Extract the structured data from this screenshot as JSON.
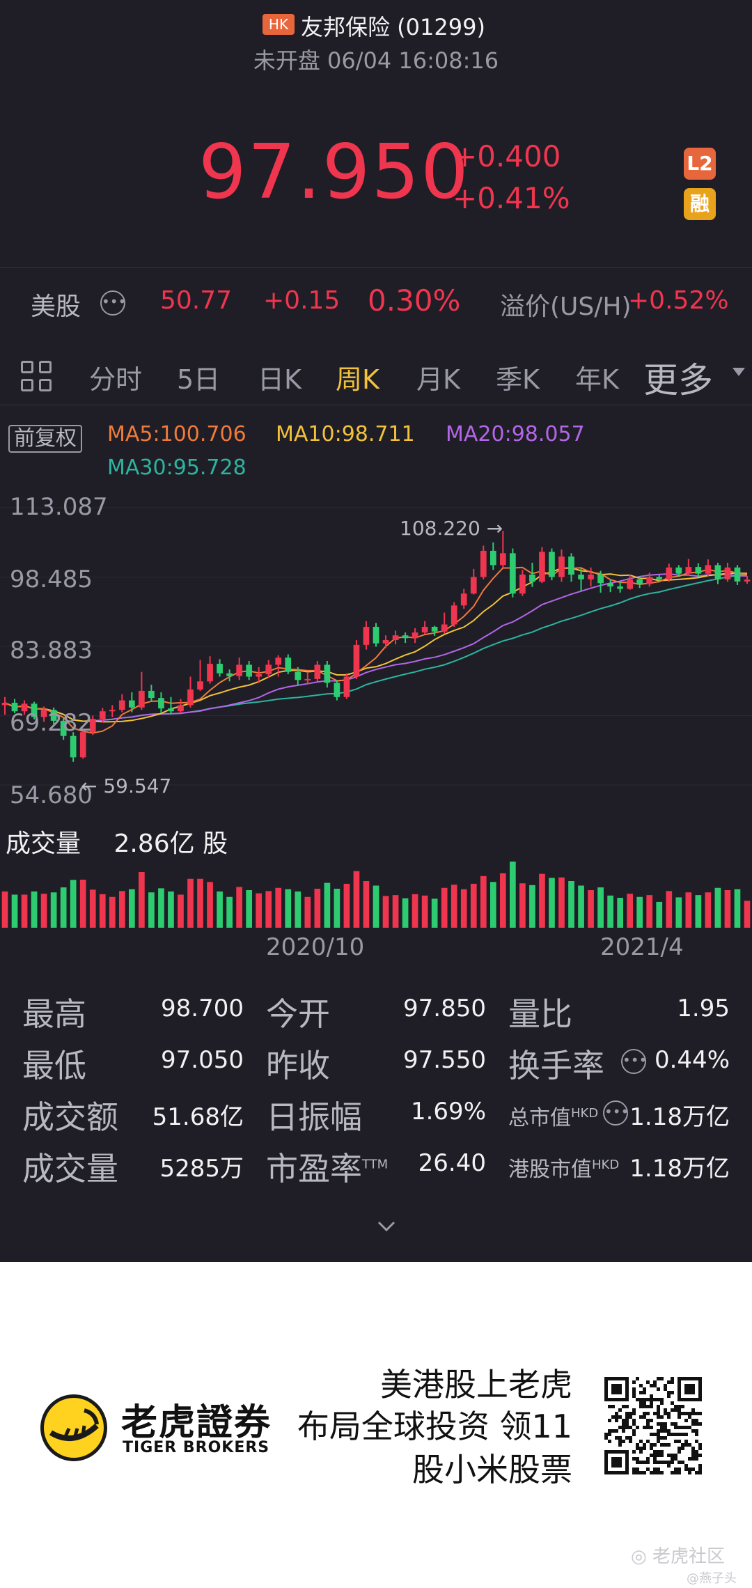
{
  "header": {
    "market_badge": "HK",
    "title": "友邦保险 (01299)",
    "status": "未开盘 06/04 16:08:16",
    "price": "97.950",
    "change": "+0.400",
    "change_pct": "+0.41%",
    "l2_badge": "L2",
    "margin_badge": "融"
  },
  "us_row": {
    "label": "美股",
    "price": "50.77",
    "change": "+0.15",
    "change_pct": "0.30%",
    "premium_label": "溢价(US/H)",
    "premium_value": "+0.52%"
  },
  "tabs": [
    {
      "label": "分时"
    },
    {
      "label": "5日"
    },
    {
      "label": "日K"
    },
    {
      "label": "周K",
      "active": true
    },
    {
      "label": "月K"
    },
    {
      "label": "季K"
    },
    {
      "label": "年K"
    },
    {
      "label": "更多"
    }
  ],
  "chart": {
    "adjust_label": "前复权",
    "ma5": "MA5:100.706",
    "ma10": "MA10:98.711",
    "ma20": "MA20:98.057",
    "ma30": "MA30:95.728",
    "y_labels": [
      "113.087",
      "98.485",
      "83.883",
      "69.282",
      "54.680"
    ],
    "high_marker": "108.220 →",
    "low_marker": "← 59.547",
    "volume_label": "成交量",
    "volume_value": "2.86亿 股",
    "x_labels": [
      "2020/10",
      "2021/4"
    ],
    "colors": {
      "up": "#f0354f",
      "down": "#2ecc71",
      "ma5": "#f07a3a",
      "ma10": "#f2c23a",
      "ma20": "#b366e8",
      "ma30": "#2bb5a0"
    }
  },
  "chart_data": {
    "type": "candlestick",
    "timeframe": "weekly",
    "ylim": [
      54.68,
      113.087
    ],
    "x_ticks": [
      "2020/10",
      "2021/4"
    ],
    "candles": [
      [
        71.5,
        72.0,
        69.5,
        73.2
      ],
      [
        72.0,
        70.2,
        69.8,
        72.8
      ],
      [
        70.2,
        71.8,
        69.5,
        72.5
      ],
      [
        71.8,
        69.0,
        68.5,
        72.2
      ],
      [
        69.0,
        70.5,
        68.0,
        71.2
      ],
      [
        70.5,
        68.2,
        67.5,
        71.0
      ],
      [
        68.2,
        65.0,
        64.2,
        68.8
      ],
      [
        65.0,
        60.5,
        59.547,
        65.8
      ],
      [
        60.5,
        65.8,
        60.2,
        66.5
      ],
      [
        65.8,
        68.6,
        65.2,
        69.3
      ],
      [
        68.6,
        70.2,
        67.8,
        70.9
      ],
      [
        70.2,
        70.5,
        69.0,
        71.5
      ],
      [
        70.5,
        72.5,
        70.0,
        73.8
      ],
      [
        72.5,
        71.0,
        70.0,
        74.2
      ],
      [
        71.0,
        74.5,
        70.5,
        78.5
      ],
      [
        74.5,
        73.0,
        72.3,
        75.8
      ],
      [
        73.0,
        70.8,
        69.8,
        74.2
      ],
      [
        70.8,
        70.2,
        69.5,
        73.2
      ],
      [
        70.2,
        71.5,
        69.8,
        72.8
      ],
      [
        71.5,
        74.8,
        71.0,
        77.5
      ],
      [
        74.8,
        76.5,
        74.5,
        81.0
      ],
      [
        76.5,
        80.2,
        76.0,
        81.8
      ],
      [
        80.2,
        78.2,
        77.5,
        81.2
      ],
      [
        78.2,
        77.6,
        76.5,
        79.0
      ],
      [
        77.6,
        80.0,
        76.8,
        81.5
      ],
      [
        80.0,
        77.5,
        76.8,
        80.8
      ],
      [
        77.5,
        78.0,
        76.2,
        79.5
      ],
      [
        78.0,
        80.0,
        77.2,
        81.0
      ],
      [
        80.0,
        81.5,
        77.5,
        82.0
      ],
      [
        81.5,
        78.5,
        78.0,
        82.2
      ],
      [
        78.5,
        76.8,
        75.8,
        79.5
      ],
      [
        76.8,
        77.0,
        76.0,
        78.5
      ],
      [
        77.0,
        80.0,
        76.5,
        80.8
      ],
      [
        80.0,
        76.2,
        75.2,
        80.8
      ],
      [
        76.2,
        73.2,
        72.5,
        76.8
      ],
      [
        73.2,
        77.5,
        72.8,
        78.2
      ],
      [
        77.5,
        84.2,
        77.0,
        85.2
      ],
      [
        84.2,
        88.0,
        83.2,
        89.2
      ],
      [
        88.0,
        84.5,
        83.8,
        88.8
      ],
      [
        84.5,
        85.2,
        83.5,
        86.2
      ],
      [
        85.2,
        86.2,
        84.3,
        87.2
      ],
      [
        86.2,
        85.6,
        84.6,
        86.8
      ],
      [
        85.6,
        86.8,
        84.6,
        87.7
      ],
      [
        86.8,
        88.0,
        86.4,
        89.2
      ],
      [
        88.0,
        87.0,
        86.1,
        88.2
      ],
      [
        87.0,
        88.5,
        86.5,
        91.0
      ],
      [
        88.5,
        92.5,
        88.0,
        93.2
      ],
      [
        92.5,
        95.0,
        91.8,
        96.0
      ],
      [
        95.0,
        98.5,
        94.8,
        100.2
      ],
      [
        98.5,
        104.0,
        98.0,
        105.1
      ],
      [
        104.0,
        101.0,
        100.0,
        105.8
      ],
      [
        101.0,
        103.5,
        100.5,
        108.22
      ],
      [
        103.5,
        95.0,
        94.2,
        104.5
      ],
      [
        95.0,
        99.0,
        94.5,
        100.0
      ],
      [
        99.0,
        97.5,
        96.4,
        101.5
      ],
      [
        97.5,
        103.8,
        97.2,
        104.8
      ],
      [
        103.8,
        98.5,
        97.8,
        104.5
      ],
      [
        98.5,
        102.8,
        97.5,
        104.3
      ],
      [
        102.8,
        99.0,
        97.5,
        103.5
      ],
      [
        99.0,
        98.0,
        95.5,
        100.5
      ],
      [
        98.0,
        99.0,
        96.5,
        100.5
      ],
      [
        99.0,
        97.2,
        95.2,
        99.8
      ],
      [
        97.2,
        96.5,
        95.3,
        98.1
      ],
      [
        96.5,
        96.0,
        95.2,
        97.5
      ],
      [
        96.0,
        98.0,
        95.8,
        99.0
      ],
      [
        98.0,
        97.0,
        96.2,
        98.7
      ],
      [
        97.0,
        98.5,
        96.5,
        99.4
      ],
      [
        98.5,
        98.0,
        97.5,
        98.9
      ],
      [
        98.0,
        100.5,
        97.5,
        101.3
      ],
      [
        100.5,
        99.2,
        98.6,
        101.0
      ],
      [
        99.2,
        100.6,
        98.8,
        102.3
      ],
      [
        100.6,
        99.2,
        98.5,
        101.4
      ],
      [
        99.2,
        101.0,
        98.7,
        102.2
      ],
      [
        101.0,
        98.0,
        97.0,
        101.5
      ],
      [
        98.0,
        100.5,
        97.5,
        101.5
      ],
      [
        100.5,
        97.55,
        96.8,
        101.0
      ],
      [
        97.55,
        97.95,
        97.05,
        98.7
      ]
    ],
    "volume_value": "2.86亿 股",
    "stats": {
      "最高": "98.700",
      "今开": "97.850",
      "量比": "1.95",
      "最低": "97.050",
      "昨收": "97.550",
      "换手率": "0.44%",
      "成交额": "51.68亿",
      "日振幅": "1.69%",
      "总市值": "1.18万亿",
      "成交量": "5285万",
      "市盈率": "26.40",
      "港股市值": "1.18万亿"
    }
  },
  "stats": {
    "high": {
      "label": "最高",
      "value": "98.700"
    },
    "open": {
      "label": "今开",
      "value": "97.850"
    },
    "vol_ratio": {
      "label": "量比",
      "value": "1.95"
    },
    "low": {
      "label": "最低",
      "value": "97.050"
    },
    "prev_close": {
      "label": "昨收",
      "value": "97.550"
    },
    "turnover_rate": {
      "label": "换手率",
      "value": "0.44%"
    },
    "amount": {
      "label": "成交额",
      "value": "51.68亿"
    },
    "amplitude": {
      "label": "日振幅",
      "value": "1.69%"
    },
    "market_cap": {
      "label": "总市值",
      "sup": "HKD",
      "value": "1.18万亿"
    },
    "volume": {
      "label": "成交量",
      "value": "5285万"
    },
    "pe": {
      "label": "市盈率",
      "sup": "TTM",
      "value": "26.40"
    },
    "hk_market_cap": {
      "label": "港股市值",
      "sup": "HKD",
      "value": "1.18万亿"
    }
  },
  "promo": {
    "brand_cn": "老虎證券",
    "brand_en": "TIGER BROKERS",
    "slogan_lines": [
      "美港股上老虎",
      "布局全球投资 领11",
      "股小米股票"
    ]
  },
  "watermark": {
    "community": "老虎社区",
    "author": "@燕子头"
  }
}
